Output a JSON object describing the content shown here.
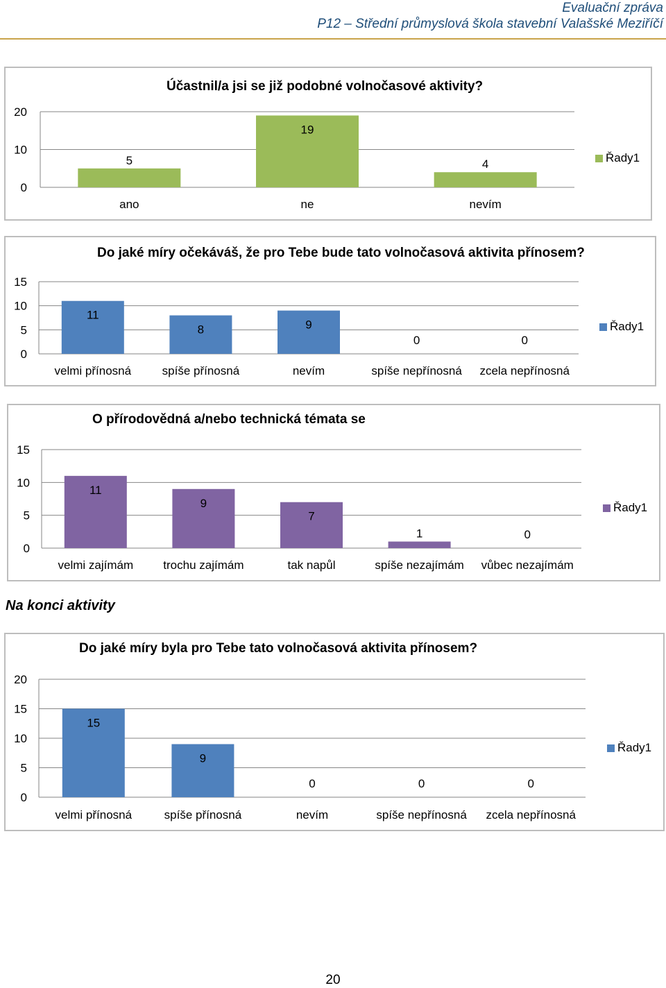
{
  "header": {
    "line1": "Evaluační zpráva",
    "line2": "P12 – Střední průmyslová škola stavební Valašské Meziříčí"
  },
  "section_heading": "Na konci aktivity",
  "page_number": "20",
  "colors": {
    "green": "#9bbb59",
    "blue": "#4f81bd",
    "purple": "#8064a2",
    "grid": "#868686"
  },
  "chart_data": [
    {
      "type": "bar",
      "title": "Účastnil/a jsi se již podobné volnočasové aktivity?",
      "categories": [
        "ano",
        "ne",
        "nevím"
      ],
      "series": [
        {
          "name": "Řady1",
          "values": [
            5,
            19,
            4
          ]
        }
      ],
      "ylim": [
        0,
        20
      ],
      "yticks": [
        0,
        10,
        20
      ],
      "color": "green"
    },
    {
      "type": "bar",
      "title": "Do jaké míry očekáváš, že pro Tebe bude tato volnočasová aktivita přínosem?",
      "categories": [
        "velmi přínosná",
        "spíše přínosná",
        "nevím",
        "spíše nepřínosná",
        "zcela nepřínosná"
      ],
      "series": [
        {
          "name": "Řady1",
          "values": [
            11,
            8,
            9,
            0,
            0
          ]
        }
      ],
      "ylim": [
        0,
        15
      ],
      "yticks": [
        0,
        5,
        10,
        15
      ],
      "color": "blue"
    },
    {
      "type": "bar",
      "title": "O přírodovědná a/nebo technická témata se",
      "categories": [
        "velmi zajímám",
        "trochu zajímám",
        "tak napůl",
        "spíše nezajímám",
        "vůbec nezajímám"
      ],
      "series": [
        {
          "name": "Řady1",
          "values": [
            11,
            9,
            7,
            1,
            0
          ]
        }
      ],
      "ylim": [
        0,
        15
      ],
      "yticks": [
        0,
        5,
        10,
        15
      ],
      "color": "purple"
    },
    {
      "type": "bar",
      "title": "Do jaké míry byla pro Tebe tato volnočasová aktivita přínosem?",
      "categories": [
        "velmi přínosná",
        "spíše přínosná",
        "nevím",
        "spíše nepřínosná",
        "zcela nepřínosná"
      ],
      "series": [
        {
          "name": "Řady1",
          "values": [
            15,
            9,
            0,
            0,
            0
          ]
        }
      ],
      "ylim": [
        0,
        20
      ],
      "yticks": [
        0,
        5,
        10,
        15,
        20
      ],
      "color": "blue"
    }
  ]
}
